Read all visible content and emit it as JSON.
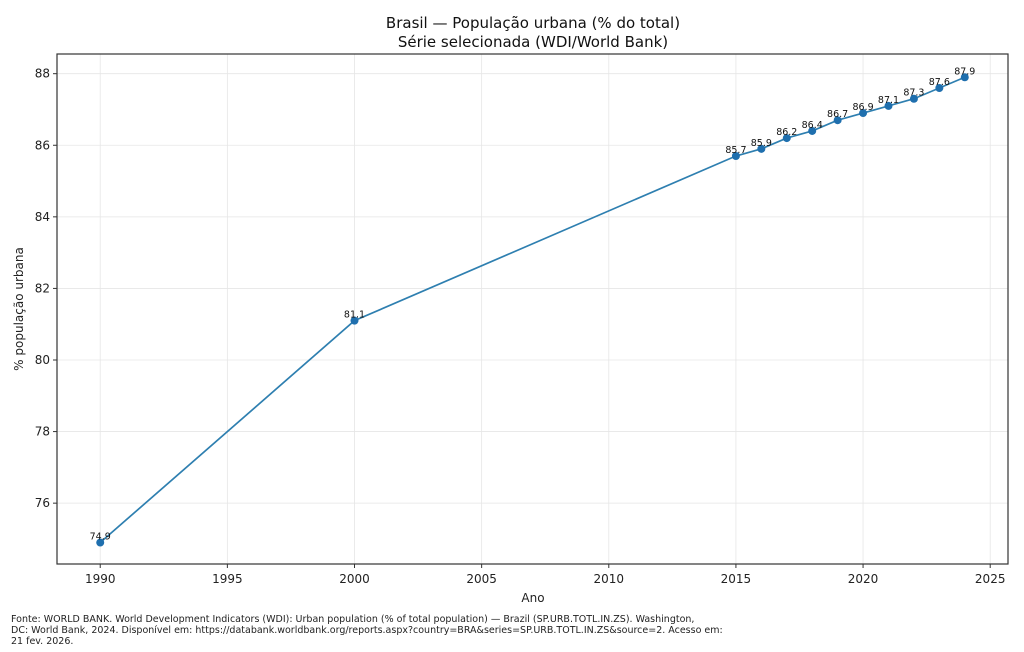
{
  "chart_data": {
    "type": "line",
    "title": "Brasil — População urbana (% do total)",
    "subtitle": "Série selecionada (WDI/World Bank)",
    "xlabel": "Ano",
    "ylabel": "% população urbana",
    "x": [
      1990,
      2000,
      2015,
      2016,
      2017,
      2018,
      2019,
      2020,
      2021,
      2022,
      2023,
      2024
    ],
    "series": [
      {
        "name": "População urbana (% do total)",
        "values": [
          74.9,
          81.1,
          85.7,
          85.9,
          86.2,
          86.4,
          86.7,
          86.9,
          87.1,
          87.3,
          87.6,
          87.9
        ],
        "labels": [
          "74.9",
          "81.1",
          "85.7",
          "85.9",
          "86.2",
          "86.4",
          "86.7",
          "86.9",
          "87.1",
          "87.3",
          "87.6",
          "87.9"
        ],
        "color": "#1f77b4"
      }
    ],
    "xlim": [
      1988.3,
      2025.7
    ],
    "ylim": [
      74.3,
      88.55
    ],
    "xticks": [
      1990,
      1995,
      2000,
      2005,
      2010,
      2015,
      2020,
      2025
    ],
    "yticks": [
      76,
      78,
      80,
      82,
      84,
      86,
      88
    ],
    "grid": true,
    "legend": "none"
  },
  "source_note": "Fonte: WORLD BANK. World Development Indicators (WDI): Urban population (% of total population) — Brazil (SP.URB.TOTL.IN.ZS). Washington,\nDC: World Bank, 2024. Disponível em: https://databank.worldbank.org/reports.aspx?country=BRA&series=SP.URB.TOTL.IN.ZS&source=2. Acesso em:\n21 fev. 2026."
}
